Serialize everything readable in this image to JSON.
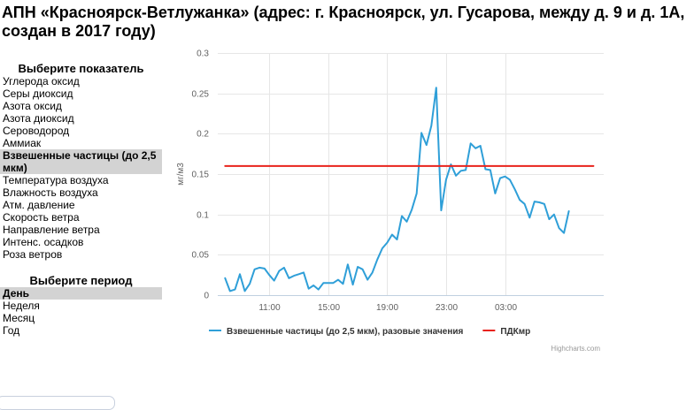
{
  "title": "АПН «Красноярск-Ветлужанка» (адрес: г. Красноярск, ул. Гусарова, между д. 9 и д. 1А, создан в 2017 году)",
  "indicator_panel": {
    "heading": "Выберите показатель",
    "items": [
      {
        "label": "Углерода оксид",
        "selected": false
      },
      {
        "label": "Серы диоксид",
        "selected": false
      },
      {
        "label": "Азота оксид",
        "selected": false
      },
      {
        "label": "Азота диоксид",
        "selected": false
      },
      {
        "label": "Сероводород",
        "selected": false
      },
      {
        "label": "Аммиак",
        "selected": false
      },
      {
        "label": "Взвешенные частицы (до 2,5 мкм)",
        "selected": true
      },
      {
        "label": "Температура воздуха",
        "selected": false
      },
      {
        "label": "Влажность воздуха",
        "selected": false
      },
      {
        "label": "Атм. давление",
        "selected": false
      },
      {
        "label": "Скорость ветра",
        "selected": false
      },
      {
        "label": "Направление ветра",
        "selected": false
      },
      {
        "label": "Интенс. осадков",
        "selected": false
      },
      {
        "label": "Роза ветров",
        "selected": false
      }
    ]
  },
  "period_panel": {
    "heading": "Выберите период",
    "items": [
      {
        "label": "День",
        "selected": true
      },
      {
        "label": "Неделя",
        "selected": false
      },
      {
        "label": "Месяц",
        "selected": false
      },
      {
        "label": "Год",
        "selected": false
      }
    ]
  },
  "credits": "Highcharts.com",
  "chart_data": {
    "type": "line",
    "ylabel": "мг/м3",
    "ylim": [
      0,
      0.3
    ],
    "yticks": [
      "0",
      "0.05",
      "0.1",
      "0.15",
      "0.2",
      "0.25",
      "0.3"
    ],
    "xticks": [
      "11:00",
      "15:00",
      "19:00",
      "23:00",
      "03:00"
    ],
    "xrange_hours": [
      7.5,
      33.7
    ],
    "xticks_hours": [
      11,
      15,
      19,
      23,
      27
    ],
    "grid": true,
    "legend_position": "bottom",
    "series": [
      {
        "name": "Взвешенные частицы (до 2,5 мкм), разовые значения",
        "color": "#2f9fd8",
        "points": [
          [
            8.0,
            0.021
          ],
          [
            8.33,
            0.005
          ],
          [
            8.67,
            0.007
          ],
          [
            9.0,
            0.026
          ],
          [
            9.33,
            0.005
          ],
          [
            9.67,
            0.014
          ],
          [
            10.0,
            0.032
          ],
          [
            10.33,
            0.034
          ],
          [
            10.67,
            0.033
          ],
          [
            11.0,
            0.025
          ],
          [
            11.33,
            0.018
          ],
          [
            11.67,
            0.03
          ],
          [
            12.0,
            0.034
          ],
          [
            12.33,
            0.021
          ],
          [
            12.67,
            0.024
          ],
          [
            13.0,
            0.026
          ],
          [
            13.33,
            0.028
          ],
          [
            13.67,
            0.008
          ],
          [
            14.0,
            0.012
          ],
          [
            14.33,
            0.007
          ],
          [
            14.67,
            0.015
          ],
          [
            15.0,
            0.015
          ],
          [
            15.33,
            0.015
          ],
          [
            15.67,
            0.019
          ],
          [
            16.0,
            0.014
          ],
          [
            16.33,
            0.038
          ],
          [
            16.67,
            0.013
          ],
          [
            17.0,
            0.035
          ],
          [
            17.33,
            0.032
          ],
          [
            17.67,
            0.019
          ],
          [
            18.0,
            0.028
          ],
          [
            18.33,
            0.044
          ],
          [
            18.67,
            0.058
          ],
          [
            19.0,
            0.065
          ],
          [
            19.33,
            0.075
          ],
          [
            19.67,
            0.069
          ],
          [
            20.0,
            0.098
          ],
          [
            20.33,
            0.091
          ],
          [
            20.67,
            0.106
          ],
          [
            21.0,
            0.126
          ],
          [
            21.33,
            0.201
          ],
          [
            21.67,
            0.186
          ],
          [
            22.0,
            0.21
          ],
          [
            22.33,
            0.257
          ],
          [
            22.67,
            0.105
          ],
          [
            23.0,
            0.143
          ],
          [
            23.33,
            0.162
          ],
          [
            23.67,
            0.148
          ],
          [
            24.0,
            0.154
          ],
          [
            24.33,
            0.155
          ],
          [
            24.67,
            0.188
          ],
          [
            25.0,
            0.182
          ],
          [
            25.33,
            0.185
          ],
          [
            25.67,
            0.156
          ],
          [
            26.0,
            0.155
          ],
          [
            26.33,
            0.126
          ],
          [
            26.67,
            0.145
          ],
          [
            27.0,
            0.147
          ],
          [
            27.33,
            0.143
          ],
          [
            27.67,
            0.131
          ],
          [
            28.0,
            0.118
          ],
          [
            28.33,
            0.113
          ],
          [
            28.67,
            0.096
          ],
          [
            29.0,
            0.116
          ],
          [
            29.33,
            0.115
          ],
          [
            29.67,
            0.113
          ],
          [
            30.0,
            0.094
          ],
          [
            30.33,
            0.1
          ],
          [
            30.67,
            0.083
          ],
          [
            31.0,
            0.077
          ],
          [
            31.33,
            0.104
          ]
        ]
      },
      {
        "name": "ПДКмр",
        "color": "#e8231c",
        "points": [
          [
            8.0,
            0.16
          ],
          [
            33.0,
            0.16
          ]
        ]
      }
    ]
  }
}
